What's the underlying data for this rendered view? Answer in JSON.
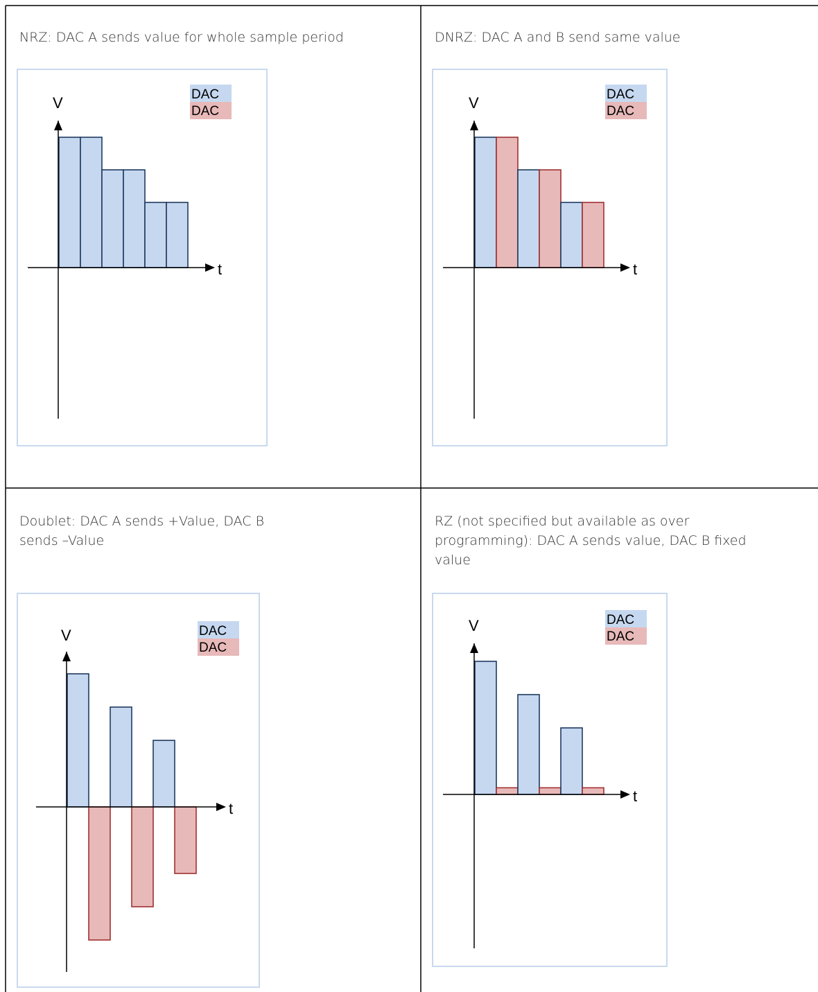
{
  "colors": {
    "dac_a_fill": "#c6d8f0",
    "dac_a_stroke": "#1f3a5f",
    "dac_b_fill": "#e8b9b9",
    "dac_b_stroke": "#a03030",
    "frame": "#c9d9ee",
    "grid_line": "#000000"
  },
  "panels": [
    {
      "id": "nrz",
      "caption": "NRZ: DAC A sends value for whole sample period",
      "y_axis_label": "V",
      "x_axis_label": "t",
      "legend": [
        "DAC",
        "DAC"
      ],
      "bars": [
        {
          "dac": "A",
          "value": 4
        },
        {
          "dac": "A",
          "value": 4
        },
        {
          "dac": "A",
          "value": 3
        },
        {
          "dac": "A",
          "value": 3
        },
        {
          "dac": "A",
          "value": 2
        },
        {
          "dac": "A",
          "value": 2
        }
      ]
    },
    {
      "id": "dnrz",
      "caption": "DNRZ: DAC A and B send same value",
      "y_axis_label": "V",
      "x_axis_label": "t",
      "legend": [
        "DAC",
        "DAC"
      ],
      "bars": [
        {
          "dac": "A",
          "value": 4
        },
        {
          "dac": "B",
          "value": 4
        },
        {
          "dac": "A",
          "value": 3
        },
        {
          "dac": "B",
          "value": 3
        },
        {
          "dac": "A",
          "value": 2
        },
        {
          "dac": "B",
          "value": 2
        }
      ]
    },
    {
      "id": "doublet",
      "caption": "Doublet: DAC A sends +Value, DAC B sends –Value",
      "y_axis_label": "V",
      "x_axis_label": "t",
      "legend": [
        "DAC",
        "DAC"
      ],
      "bars": [
        {
          "dac": "A",
          "value": 4
        },
        {
          "dac": "B",
          "value": -4
        },
        {
          "dac": "A",
          "value": 3
        },
        {
          "dac": "B",
          "value": -3
        },
        {
          "dac": "A",
          "value": 2
        },
        {
          "dac": "B",
          "value": -2
        }
      ]
    },
    {
      "id": "rz",
      "caption": "RZ (not specified but available as over programming): DAC A sends value, DAC B fixed value",
      "y_axis_label": "V",
      "x_axis_label": "t",
      "legend": [
        "DAC",
        "DAC"
      ],
      "bars": [
        {
          "dac": "A",
          "value": 4
        },
        {
          "dac": "B",
          "value": 0.2
        },
        {
          "dac": "A",
          "value": 3
        },
        {
          "dac": "B",
          "value": 0.2
        },
        {
          "dac": "A",
          "value": 2
        },
        {
          "dac": "B",
          "value": 0.2
        }
      ]
    }
  ]
}
